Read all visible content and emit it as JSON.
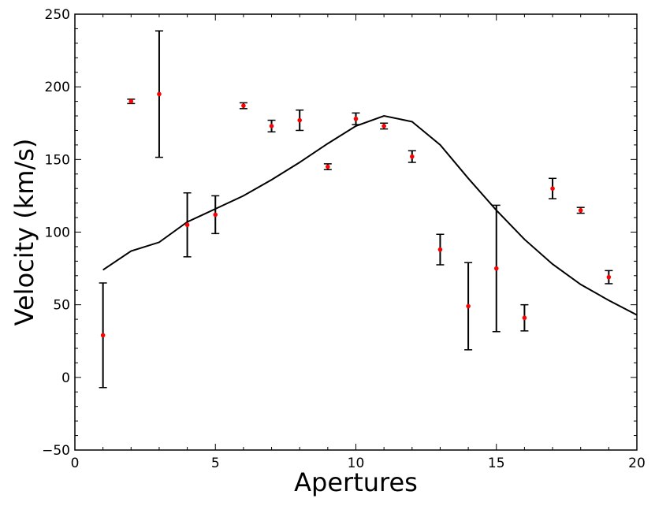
{
  "chart_data": {
    "type": "scatter",
    "title": "",
    "xlabel": "Apertures",
    "ylabel": "Velocity (km/s)",
    "xlim": [
      0,
      20
    ],
    "ylim": [
      -50,
      250
    ],
    "x_ticks": [
      0,
      5,
      10,
      15,
      20
    ],
    "y_ticks": [
      -50,
      0,
      50,
      100,
      150,
      200,
      250
    ],
    "x_tick_labels": [
      "0",
      "5",
      "10",
      "15",
      "20"
    ],
    "y_tick_labels": [
      "−50",
      "0",
      "50",
      "100",
      "150",
      "200",
      "250"
    ],
    "grid": false,
    "legend": "none",
    "series": [
      {
        "kind": "points_with_error_bars",
        "color": "#ff0000",
        "errorbar_color": "#000000",
        "points": [
          {
            "x": 1,
            "y": 29,
            "err": 36
          },
          {
            "x": 2,
            "y": 190,
            "err": 1.5
          },
          {
            "x": 3,
            "y": 195,
            "err": 43.5
          },
          {
            "x": 4,
            "y": 105,
            "err": 22
          },
          {
            "x": 5,
            "y": 112,
            "err": 13
          },
          {
            "x": 6,
            "y": 187,
            "err": 2
          },
          {
            "x": 7,
            "y": 173,
            "err": 4
          },
          {
            "x": 8,
            "y": 177,
            "err": 7
          },
          {
            "x": 9,
            "y": 145,
            "err": 2
          },
          {
            "x": 10,
            "y": 178,
            "err": 4
          },
          {
            "x": 11,
            "y": 173,
            "err": 2
          },
          {
            "x": 12,
            "y": 152,
            "err": 4
          },
          {
            "x": 13,
            "y": 88,
            "err": 10.5
          },
          {
            "x": 14,
            "y": 49,
            "err": 30
          },
          {
            "x": 15,
            "y": 75,
            "err": 43.5
          },
          {
            "x": 16,
            "y": 41,
            "err": 9
          },
          {
            "x": 17,
            "y": 130,
            "err": 7
          },
          {
            "x": 18,
            "y": 115,
            "err": 2
          },
          {
            "x": 19,
            "y": 69,
            "err": 4.5
          }
        ]
      },
      {
        "kind": "line",
        "color": "#000000",
        "x": [
          1,
          2,
          3,
          4,
          5,
          6,
          7,
          8,
          9,
          10,
          11,
          12,
          13,
          14,
          15,
          16,
          17,
          18,
          19,
          20
        ],
        "y": [
          74,
          87,
          93,
          107,
          116,
          125,
          136,
          148,
          161,
          173,
          180,
          176,
          160,
          137,
          115,
          95,
          78,
          64,
          53,
          43
        ]
      }
    ]
  }
}
